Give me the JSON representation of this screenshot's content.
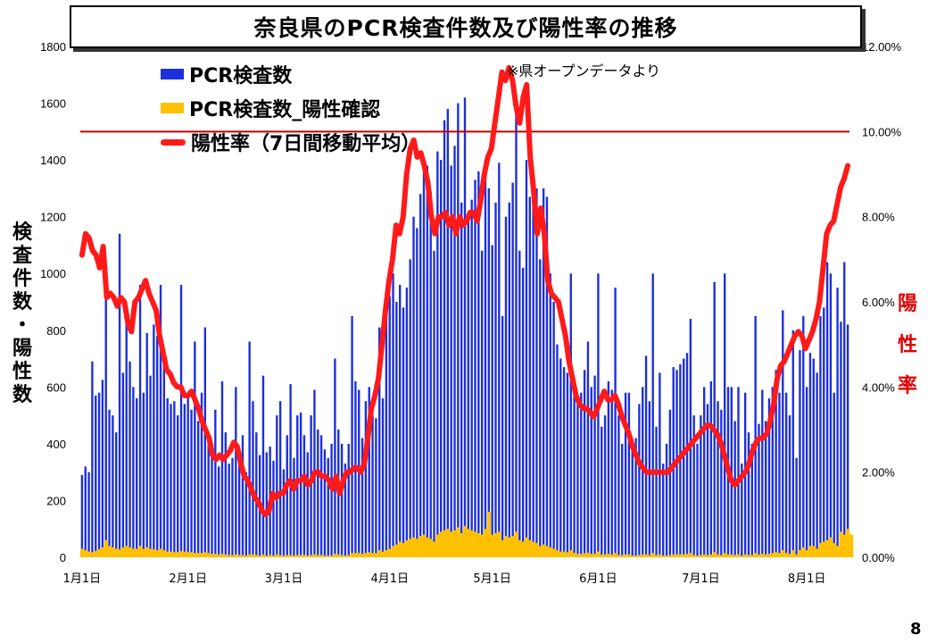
{
  "title": "奈良県のPCR検査件数及び陽性率の推移",
  "note": "※県オープンデータより",
  "page_number": "8",
  "y_left_label_chars": [
    "検",
    "査",
    "件",
    "数",
    "・",
    "陽",
    "性",
    "数"
  ],
  "y_right_label_chars": [
    "陽",
    "性",
    "率"
  ],
  "legend": [
    {
      "label": "PCR検査数",
      "color": "#1c2fdc",
      "kind": "bar"
    },
    {
      "label": "PCR検査数_陽性確認",
      "color": "#ffc000",
      "kind": "bar"
    },
    {
      "label": "陽性率（7日間移動平均）",
      "color": "#ff1a1a",
      "kind": "line"
    }
  ],
  "chart_data": {
    "type": "bar",
    "x_tick_labels": [
      "1月1日",
      "2月1日",
      "3月1日",
      "4月1日",
      "5月1日",
      "6月1日",
      "7月1日",
      "8月1日"
    ],
    "x_tick_day_index": [
      0,
      31,
      59,
      90,
      120,
      151,
      181,
      212
    ],
    "ylim_left": [
      0,
      1800
    ],
    "yticks_left": [
      0,
      200,
      400,
      600,
      800,
      1000,
      1200,
      1400,
      1600,
      1800
    ],
    "ylim_right": [
      0,
      12
    ],
    "yticks_right": [
      "0.00%",
      "2.00%",
      "4.00%",
      "6.00%",
      "8.00%",
      "10.00%",
      "12.00%"
    ],
    "reference_line": {
      "value_percent": 10,
      "color": "#c00000"
    },
    "series_tests": {
      "name": "PCR検査数",
      "color": "#1c2fdc",
      "values": [
        290,
        320,
        300,
        690,
        570,
        580,
        625,
        950,
        520,
        500,
        440,
        1140,
        650,
        850,
        690,
        600,
        560,
        960,
        580,
        790,
        640,
        820,
        780,
        960,
        710,
        560,
        540,
        550,
        500,
        960,
        540,
        570,
        520,
        760,
        480,
        580,
        810,
        440,
        400,
        520,
        320,
        620,
        440,
        330,
        350,
        600,
        350,
        430,
        300,
        760,
        550,
        440,
        360,
        640,
        370,
        390,
        340,
        500,
        550,
        310,
        430,
        610,
        350,
        500,
        510,
        430,
        370,
        500,
        590,
        450,
        430,
        380,
        350,
        400,
        700,
        450,
        400,
        330,
        400,
        850,
        620,
        590,
        420,
        550,
        600,
        500,
        490,
        810,
        560,
        900,
        920,
        1000,
        900,
        960,
        880,
        950,
        1050,
        1200,
        1160,
        1280,
        1400,
        1380,
        1290,
        1080,
        1430,
        1400,
        1540,
        1580,
        1380,
        1450,
        1600,
        1250,
        1620,
        1200,
        1260,
        1330,
        1360,
        1080,
        1400,
        1300,
        1100,
        1250,
        1390,
        850,
        1200,
        1250,
        1320,
        1580,
        1080,
        1020,
        1400,
        1270,
        1320,
        1300,
        1050,
        1300,
        1270,
        1000,
        900,
        750,
        700,
        670,
        650,
        1000,
        580,
        550,
        580,
        660,
        760,
        600,
        640,
        1000,
        460,
        500,
        620,
        590,
        950,
        500,
        400,
        580,
        580,
        380,
        420,
        540,
        600,
        710,
        550,
        1000,
        460,
        650,
        330,
        400,
        520,
        670,
        660,
        680,
        700,
        720,
        840,
        500,
        400,
        500,
        600,
        540,
        620,
        970,
        550,
        520,
        1000,
        600,
        600,
        480,
        600,
        330,
        580,
        440,
        400,
        850,
        470,
        590,
        480,
        560,
        600,
        660,
        580,
        870,
        580,
        500,
        800,
        350,
        730,
        850,
        600,
        720,
        700,
        650,
        850,
        880,
        1040,
        1000,
        580,
        950,
        830,
        1040,
        820
      ]
    },
    "series_positive": {
      "name": "PCR検査数_陽性確認",
      "color": "#ffc000",
      "values": [
        30,
        25,
        20,
        18,
        22,
        28,
        35,
        60,
        40,
        35,
        30,
        28,
        35,
        40,
        35,
        30,
        30,
        40,
        30,
        35,
        30,
        28,
        25,
        30,
        25,
        20,
        20,
        18,
        18,
        22,
        20,
        18,
        18,
        15,
        15,
        15,
        18,
        15,
        12,
        12,
        10,
        12,
        10,
        8,
        8,
        10,
        8,
        8,
        6,
        10,
        10,
        8,
        6,
        10,
        6,
        8,
        6,
        10,
        8,
        6,
        8,
        8,
        6,
        8,
        8,
        8,
        6,
        8,
        10,
        8,
        8,
        6,
        6,
        6,
        12,
        10,
        8,
        6,
        8,
        15,
        15,
        15,
        12,
        15,
        18,
        15,
        15,
        25,
        20,
        25,
        30,
        40,
        45,
        55,
        50,
        60,
        65,
        70,
        65,
        75,
        80,
        70,
        65,
        55,
        80,
        90,
        95,
        100,
        90,
        95,
        105,
        85,
        110,
        100,
        95,
        90,
        85,
        80,
        100,
        160,
        80,
        85,
        90,
        60,
        75,
        70,
        75,
        90,
        60,
        55,
        70,
        60,
        55,
        50,
        40,
        45,
        40,
        35,
        30,
        25,
        20,
        20,
        18,
        25,
        15,
        12,
        12,
        14,
        16,
        12,
        12,
        20,
        10,
        10,
        12,
        10,
        15,
        8,
        8,
        10,
        10,
        6,
        6,
        8,
        10,
        10,
        8,
        15,
        8,
        10,
        6,
        6,
        8,
        10,
        10,
        10,
        10,
        12,
        15,
        8,
        6,
        8,
        10,
        8,
        10,
        18,
        10,
        8,
        15,
        10,
        10,
        8,
        10,
        6,
        10,
        8,
        8,
        15,
        10,
        12,
        10,
        12,
        15,
        18,
        15,
        25,
        15,
        12,
        25,
        10,
        25,
        35,
        25,
        40,
        40,
        30,
        50,
        55,
        60,
        70,
        50,
        40,
        90,
        80,
        100,
        80
      ]
    },
    "series_positivity_rate": {
      "name": "陽性率（7日間移動平均）",
      "color": "#ff1a1a",
      "unit": "%",
      "values": [
        7.1,
        7.6,
        7.5,
        7.2,
        7.1,
        6.8,
        7.3,
        6.1,
        6.2,
        6.1,
        5.9,
        6.1,
        6.0,
        5.5,
        5.3,
        6.0,
        6.1,
        6.3,
        6.5,
        6.2,
        6.0,
        5.8,
        5.2,
        4.8,
        4.4,
        4.3,
        4.1,
        4.0,
        4.0,
        3.8,
        3.8,
        3.9,
        3.7,
        3.5,
        3.2,
        3.0,
        2.8,
        2.4,
        2.3,
        2.4,
        2.3,
        2.4,
        2.5,
        2.7,
        2.6,
        2.2,
        1.9,
        1.8,
        1.6,
        1.4,
        1.3,
        1.1,
        1.0,
        1.1,
        1.5,
        1.4,
        1.5,
        1.5,
        1.7,
        1.8,
        1.6,
        1.8,
        1.8,
        1.9,
        1.7,
        1.8,
        2.0,
        2.0,
        1.9,
        1.9,
        1.8,
        1.6,
        1.9,
        1.5,
        1.8,
        2.0,
        2.0,
        2.1,
        2.1,
        2.0,
        2.2,
        2.8,
        3.5,
        3.8,
        4.2,
        5.0,
        5.8,
        6.5,
        7.0,
        7.8,
        7.6,
        8.0,
        9.0,
        9.6,
        9.8,
        9.4,
        9.5,
        9.2,
        8.8,
        8.0,
        7.6,
        8.0,
        8.0,
        8.1,
        7.8,
        8.0,
        7.6,
        8.0,
        7.8,
        7.9,
        8.1,
        8.1,
        7.9,
        8.4,
        9.0,
        9.4,
        9.6,
        10.2,
        10.8,
        11.4,
        11.2,
        11.5,
        11.2,
        10.6,
        10.2,
        10.8,
        11.1,
        9.4,
        8.6,
        7.6,
        8.2,
        7.6,
        6.5,
        6.2,
        6.1,
        6.0,
        5.6,
        5.2,
        4.6,
        4.2,
        3.8,
        3.6,
        3.5,
        3.5,
        3.4,
        3.3,
        3.5,
        3.7,
        3.9,
        3.7,
        3.7,
        3.8,
        3.6,
        3.3,
        3.1,
        2.9,
        2.6,
        2.4,
        2.2,
        2.1,
        2.0,
        2.0,
        2.0,
        2.0,
        2.0,
        2.0,
        2.0,
        2.1,
        2.2,
        2.3,
        2.4,
        2.5,
        2.6,
        2.7,
        2.8,
        2.9,
        3.0,
        3.1,
        3.1,
        3.0,
        2.9,
        2.7,
        2.4,
        2.1,
        1.8,
        1.7,
        1.8,
        1.9,
        2.0,
        2.2,
        2.5,
        2.7,
        2.8,
        2.8,
        2.9,
        3.2,
        3.6,
        4.2,
        4.5,
        4.6,
        4.8,
        5.0,
        5.2,
        5.3,
        5.2,
        4.9,
        5.1,
        5.3,
        5.6,
        6.0,
        6.8,
        7.6,
        7.8,
        7.9,
        8.3,
        8.7,
        8.9,
        9.2
      ]
    }
  }
}
